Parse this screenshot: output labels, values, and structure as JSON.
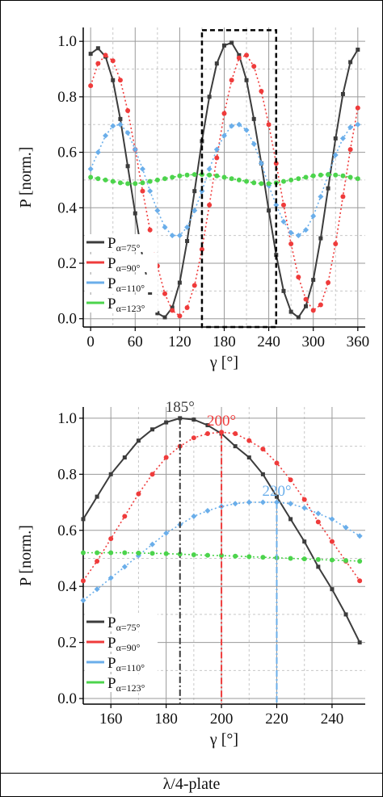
{
  "caption": "λ/4-plate",
  "colors": {
    "p75": "#3c3c3c",
    "p90": "#ef3b3b",
    "p110": "#6aaeea",
    "p123": "#4cd44c"
  },
  "chart_data": [
    {
      "type": "line",
      "xlabel": "γ [°]",
      "ylabel": "P [norm.]",
      "xlim": [
        -10,
        370
      ],
      "ylim": [
        -0.03,
        1.05
      ],
      "xticks": [
        0,
        60,
        120,
        180,
        240,
        300,
        360
      ],
      "yticks": [
        0.0,
        0.2,
        0.4,
        0.6,
        0.8,
        1.0
      ],
      "grid": true,
      "legend_position": "bottom-left",
      "series": [
        {
          "legend": "P",
          "subscript": "α=75°",
          "color_key": "p75",
          "marker": "square",
          "style": "solid",
          "points": [
            [
              0,
              0.955
            ],
            [
              10,
              0.975
            ],
            [
              20,
              0.945
            ],
            [
              30,
              0.86
            ],
            [
              40,
              0.72
            ],
            [
              50,
              0.55
            ],
            [
              60,
              0.38
            ],
            [
              70,
              0.22
            ],
            [
              80,
              0.09
            ],
            [
              90,
              0.02
            ],
            [
              100,
              0.005
            ],
            [
              110,
              0.04
            ],
            [
              120,
              0.13
            ],
            [
              130,
              0.28
            ],
            [
              140,
              0.46
            ],
            [
              150,
              0.64
            ],
            [
              160,
              0.8
            ],
            [
              170,
              0.92
            ],
            [
              180,
              0.985
            ],
            [
              190,
              0.995
            ],
            [
              200,
              0.95
            ],
            [
              210,
              0.86
            ],
            [
              220,
              0.72
            ],
            [
              230,
              0.56
            ],
            [
              240,
              0.39
            ],
            [
              250,
              0.23
            ],
            [
              260,
              0.1
            ],
            [
              270,
              0.025
            ],
            [
              280,
              0.005
            ],
            [
              290,
              0.045
            ],
            [
              300,
              0.14
            ],
            [
              310,
              0.29
            ],
            [
              320,
              0.47
            ],
            [
              330,
              0.65
            ],
            [
              340,
              0.81
            ],
            [
              350,
              0.925
            ],
            [
              360,
              0.97
            ]
          ]
        },
        {
          "legend": "P",
          "subscript": "α=90°",
          "color_key": "p90",
          "marker": "circle",
          "style": "dotted",
          "points": [
            [
              0,
              0.84
            ],
            [
              10,
              0.92
            ],
            [
              20,
              0.95
            ],
            [
              30,
              0.93
            ],
            [
              40,
              0.86
            ],
            [
              50,
              0.75
            ],
            [
              60,
              0.61
            ],
            [
              70,
              0.46
            ],
            [
              80,
              0.32
            ],
            [
              90,
              0.19
            ],
            [
              100,
              0.09
            ],
            [
              110,
              0.03
            ],
            [
              120,
              0.01
            ],
            [
              130,
              0.04
            ],
            [
              140,
              0.12
            ],
            [
              150,
              0.25
            ],
            [
              160,
              0.41
            ],
            [
              170,
              0.58
            ],
            [
              180,
              0.74
            ],
            [
              190,
              0.86
            ],
            [
              200,
              0.94
            ],
            [
              210,
              0.95
            ],
            [
              220,
              0.91
            ],
            [
              230,
              0.82
            ],
            [
              240,
              0.7
            ],
            [
              250,
              0.56
            ],
            [
              260,
              0.41
            ],
            [
              270,
              0.27
            ],
            [
              280,
              0.15
            ],
            [
              290,
              0.07
            ],
            [
              300,
              0.03
            ],
            [
              310,
              0.05
            ],
            [
              320,
              0.13
            ],
            [
              330,
              0.27
            ],
            [
              340,
              0.44
            ],
            [
              350,
              0.61
            ],
            [
              360,
              0.76
            ]
          ]
        },
        {
          "legend": "P",
          "subscript": "α=110°",
          "color_key": "p110",
          "marker": "diamond",
          "style": "dotted",
          "points": [
            [
              0,
              0.54
            ],
            [
              10,
              0.6
            ],
            [
              20,
              0.66
            ],
            [
              30,
              0.695
            ],
            [
              40,
              0.7
            ],
            [
              50,
              0.67
            ],
            [
              60,
              0.61
            ],
            [
              70,
              0.54
            ],
            [
              80,
              0.46
            ],
            [
              90,
              0.39
            ],
            [
              100,
              0.33
            ],
            [
              110,
              0.3
            ],
            [
              120,
              0.3
            ],
            [
              130,
              0.33
            ],
            [
              140,
              0.39
            ],
            [
              150,
              0.46
            ],
            [
              160,
              0.54
            ],
            [
              170,
              0.61
            ],
            [
              180,
              0.66
            ],
            [
              190,
              0.695
            ],
            [
              200,
              0.7
            ],
            [
              210,
              0.68
            ],
            [
              220,
              0.63
            ],
            [
              230,
              0.56
            ],
            [
              240,
              0.48
            ],
            [
              250,
              0.41
            ],
            [
              260,
              0.35
            ],
            [
              270,
              0.31
            ],
            [
              280,
              0.3
            ],
            [
              290,
              0.32
            ],
            [
              300,
              0.37
            ],
            [
              310,
              0.44
            ],
            [
              320,
              0.52
            ],
            [
              330,
              0.59
            ],
            [
              340,
              0.65
            ],
            [
              350,
              0.69
            ],
            [
              360,
              0.7
            ]
          ]
        },
        {
          "legend": "P",
          "subscript": "α=123°",
          "color_key": "p123",
          "marker": "circle",
          "style": "dotted",
          "points": [
            [
              0,
              0.51
            ],
            [
              10,
              0.505
            ],
            [
              20,
              0.5
            ],
            [
              30,
              0.495
            ],
            [
              40,
              0.49
            ],
            [
              50,
              0.487
            ],
            [
              60,
              0.487
            ],
            [
              70,
              0.49
            ],
            [
              80,
              0.495
            ],
            [
              90,
              0.5
            ],
            [
              100,
              0.505
            ],
            [
              110,
              0.51
            ],
            [
              120,
              0.515
            ],
            [
              130,
              0.518
            ],
            [
              140,
              0.52
            ],
            [
              150,
              0.52
            ],
            [
              160,
              0.518
            ],
            [
              170,
              0.515
            ],
            [
              180,
              0.51
            ],
            [
              190,
              0.505
            ],
            [
              200,
              0.5
            ],
            [
              210,
              0.495
            ],
            [
              220,
              0.49
            ],
            [
              230,
              0.487
            ],
            [
              240,
              0.487
            ],
            [
              250,
              0.49
            ],
            [
              260,
              0.495
            ],
            [
              270,
              0.5
            ],
            [
              280,
              0.505
            ],
            [
              290,
              0.51
            ],
            [
              300,
              0.515
            ],
            [
              310,
              0.518
            ],
            [
              320,
              0.52
            ],
            [
              330,
              0.518
            ],
            [
              340,
              0.515
            ],
            [
              350,
              0.51
            ],
            [
              360,
              0.505
            ]
          ]
        }
      ],
      "highlight_box": {
        "x": [
          150,
          250
        ],
        "y": [
          -0.03,
          1.04
        ]
      }
    },
    {
      "type": "line",
      "xlabel": "γ [°]",
      "ylabel": "P [norm.]",
      "xlim": [
        150,
        252
      ],
      "ylim": [
        -0.02,
        1.04
      ],
      "xticks": [
        160,
        180,
        200,
        220,
        240
      ],
      "yticks": [
        0.0,
        0.2,
        0.4,
        0.6,
        0.8,
        1.0
      ],
      "grid": true,
      "legend_position": "bottom-left",
      "series": [
        {
          "legend": "P",
          "subscript": "α=75°",
          "color_key": "p75",
          "marker": "square",
          "style": "solid",
          "points": [
            [
              150,
              0.64
            ],
            [
              155,
              0.72
            ],
            [
              160,
              0.8
            ],
            [
              165,
              0.86
            ],
            [
              170,
              0.92
            ],
            [
              175,
              0.96
            ],
            [
              180,
              0.985
            ],
            [
              185,
              1.0
            ],
            [
              190,
              0.995
            ],
            [
              195,
              0.975
            ],
            [
              200,
              0.945
            ],
            [
              205,
              0.9
            ],
            [
              210,
              0.86
            ],
            [
              215,
              0.8
            ],
            [
              220,
              0.72
            ],
            [
              225,
              0.64
            ],
            [
              230,
              0.56
            ],
            [
              235,
              0.47
            ],
            [
              240,
              0.39
            ],
            [
              245,
              0.3
            ],
            [
              250,
              0.2
            ]
          ]
        },
        {
          "legend": "P",
          "subscript": "α=90°",
          "color_key": "p90",
          "marker": "circle",
          "style": "dotted",
          "points": [
            [
              150,
              0.42
            ],
            [
              155,
              0.49
            ],
            [
              160,
              0.57
            ],
            [
              165,
              0.65
            ],
            [
              170,
              0.73
            ],
            [
              175,
              0.8
            ],
            [
              180,
              0.86
            ],
            [
              185,
              0.9
            ],
            [
              190,
              0.93
            ],
            [
              195,
              0.945
            ],
            [
              200,
              0.95
            ],
            [
              205,
              0.945
            ],
            [
              210,
              0.92
            ],
            [
              215,
              0.89
            ],
            [
              220,
              0.84
            ],
            [
              225,
              0.78
            ],
            [
              230,
              0.71
            ],
            [
              235,
              0.63
            ],
            [
              240,
              0.56
            ],
            [
              245,
              0.49
            ],
            [
              250,
              0.42
            ]
          ]
        },
        {
          "legend": "P",
          "subscript": "α=110°",
          "color_key": "p110",
          "marker": "diamond",
          "style": "dotted",
          "points": [
            [
              150,
              0.35
            ],
            [
              155,
              0.39
            ],
            [
              160,
              0.43
            ],
            [
              165,
              0.47
            ],
            [
              170,
              0.51
            ],
            [
              175,
              0.55
            ],
            [
              180,
              0.59
            ],
            [
              185,
              0.62
            ],
            [
              190,
              0.65
            ],
            [
              195,
              0.67
            ],
            [
              200,
              0.685
            ],
            [
              205,
              0.695
            ],
            [
              210,
              0.7
            ],
            [
              215,
              0.7
            ],
            [
              220,
              0.7
            ],
            [
              225,
              0.695
            ],
            [
              230,
              0.68
            ],
            [
              235,
              0.66
            ],
            [
              240,
              0.64
            ],
            [
              245,
              0.61
            ],
            [
              250,
              0.58
            ]
          ]
        },
        {
          "legend": "P",
          "subscript": "α=123°",
          "color_key": "p123",
          "marker": "circle",
          "style": "dotted",
          "points": [
            [
              150,
              0.52
            ],
            [
              155,
              0.52
            ],
            [
              160,
              0.52
            ],
            [
              165,
              0.52
            ],
            [
              170,
              0.519
            ],
            [
              175,
              0.518
            ],
            [
              180,
              0.517
            ],
            [
              185,
              0.515
            ],
            [
              190,
              0.513
            ],
            [
              195,
              0.511
            ],
            [
              200,
              0.51
            ],
            [
              205,
              0.508
            ],
            [
              210,
              0.506
            ],
            [
              215,
              0.504
            ],
            [
              220,
              0.502
            ],
            [
              225,
              0.5
            ],
            [
              230,
              0.498
            ],
            [
              235,
              0.496
            ],
            [
              240,
              0.494
            ],
            [
              245,
              0.492
            ],
            [
              250,
              0.49
            ]
          ]
        }
      ],
      "markers": [
        {
          "label": "185°",
          "x": 185,
          "y_top": 1.0,
          "color_key": "p75",
          "style": "dashdot"
        },
        {
          "label": "200°",
          "x": 200,
          "y_top": 0.95,
          "color_key": "p90",
          "style": "dashdot"
        },
        {
          "label": "220°",
          "x": 220,
          "y_top": 0.7,
          "color_key": "p110",
          "style": "dashdot"
        }
      ]
    }
  ]
}
